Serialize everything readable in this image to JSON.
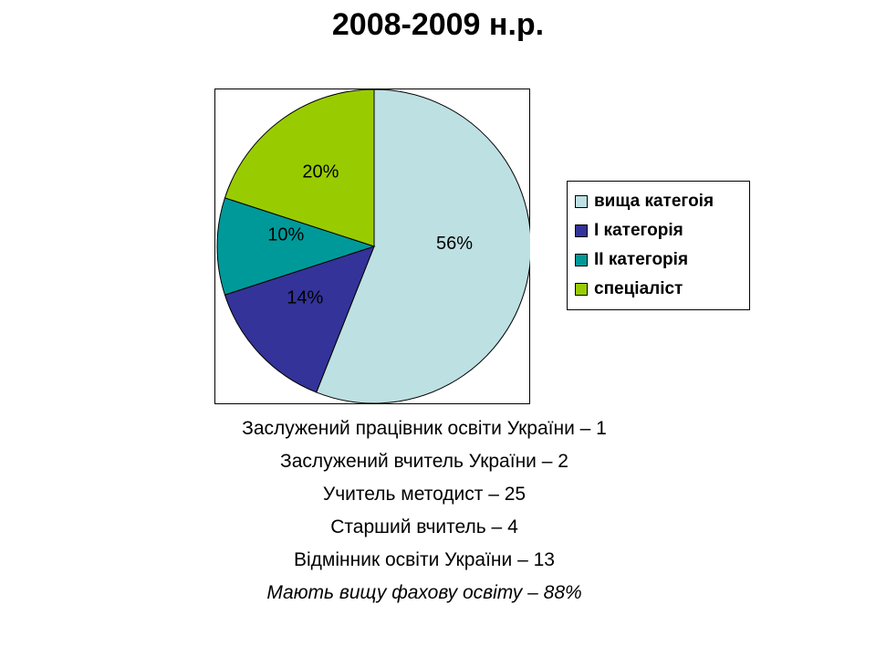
{
  "chart_data": {
    "type": "pie",
    "title": "2008-2009 н.р.",
    "slices": [
      {
        "label": "вища категоія",
        "value": 56,
        "display": "56%",
        "color": "#BDE0E2"
      },
      {
        "label": "I категорія",
        "value": 14,
        "display": "14%",
        "color": "#333399"
      },
      {
        "label": "II категорія",
        "value": 10,
        "display": "10%",
        "color": "#009999"
      },
      {
        "label": "спеціаліст",
        "value": 20,
        "display": "20%",
        "color": "#99CC00"
      }
    ],
    "legend_position": "right"
  },
  "notes": [
    {
      "text": "Заслужений працівник освіти України – 1",
      "italic": false
    },
    {
      "text": "Заслужений  вчитель України – 2",
      "italic": false
    },
    {
      "text": "Учитель методист – 25",
      "italic": false
    },
    {
      "text": "Старший вчитель – 4",
      "italic": false
    },
    {
      "text": "Відмінник освіти України – 13",
      "italic": false
    },
    {
      "text": "Мають вищу фахову освіту – 88%",
      "italic": true
    }
  ]
}
